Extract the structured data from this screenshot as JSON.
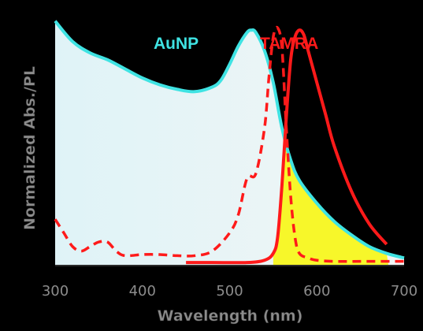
{
  "chart_data": {
    "type": "line",
    "xlabel": "Wavelength (nm)",
    "ylabel": "Normalized Abs./PL",
    "xlim": [
      300,
      700
    ],
    "ylim": [
      0,
      1.1
    ],
    "x_ticks": [
      "300",
      "400",
      "500",
      "600",
      "700"
    ],
    "grid": false,
    "colors": {
      "aunp": "#3fe3e3",
      "tamra": "#ff1a1a",
      "aunp_fill": "#dff3f7",
      "overlap_fill": "#f7f72a"
    },
    "series": [
      {
        "name": "AuNP",
        "style": "solid",
        "x": [
          300,
          320,
          340,
          360,
          380,
          400,
          420,
          440,
          460,
          480,
          490,
          500,
          510,
          520,
          525,
          530,
          540,
          550,
          560,
          570,
          580,
          600,
          620,
          640,
          660,
          680,
          700
        ],
        "y": [
          1.07,
          0.98,
          0.93,
          0.9,
          0.86,
          0.82,
          0.79,
          0.77,
          0.76,
          0.78,
          0.81,
          0.88,
          0.96,
          1.02,
          1.03,
          1.02,
          0.94,
          0.8,
          0.6,
          0.46,
          0.37,
          0.27,
          0.19,
          0.13,
          0.08,
          0.05,
          0.03
        ]
      },
      {
        "name": "TAMRA",
        "style": "dashed",
        "x": [
          300,
          310,
          320,
          330,
          340,
          350,
          360,
          370,
          380,
          400,
          420,
          440,
          460,
          480,
          500,
          510,
          520,
          530,
          540,
          545,
          550,
          555,
          560,
          565,
          570,
          575,
          580,
          590,
          600,
          620,
          650,
          700
        ],
        "y": [
          0.2,
          0.14,
          0.08,
          0.06,
          0.08,
          0.1,
          0.1,
          0.06,
          0.04,
          0.045,
          0.045,
          0.04,
          0.04,
          0.06,
          0.14,
          0.22,
          0.38,
          0.4,
          0.6,
          0.82,
          1.0,
          1.04,
          0.95,
          0.6,
          0.3,
          0.12,
          0.05,
          0.03,
          0.02,
          0.015,
          0.015,
          0.015
        ]
      },
      {
        "name": "TAMRA",
        "style": "solid",
        "x": [
          450,
          480,
          520,
          540,
          550,
          555,
          560,
          565,
          570,
          575,
          580,
          585,
          590,
          600,
          610,
          620,
          640,
          660,
          680
        ],
        "y": [
          0.01,
          0.01,
          0.01,
          0.02,
          0.05,
          0.12,
          0.35,
          0.65,
          0.9,
          1.0,
          1.03,
          1.01,
          0.94,
          0.8,
          0.66,
          0.52,
          0.32,
          0.18,
          0.09
        ]
      }
    ]
  }
}
